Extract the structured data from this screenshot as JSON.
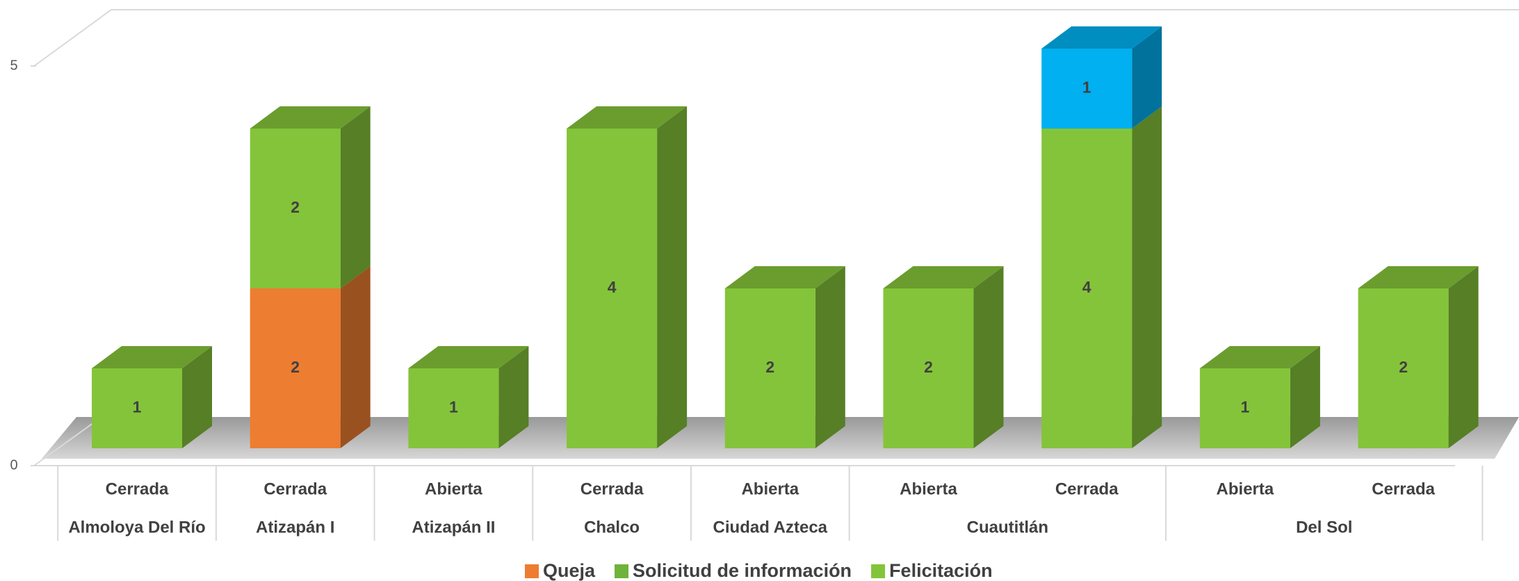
{
  "chart_data": {
    "type": "bar3d_stacked",
    "categories": [
      "Cerrada",
      "Cerrada",
      "Abierta",
      "Cerrada",
      "Abierta",
      "Abierta",
      "Cerrada",
      "Abierta",
      "Cerrada"
    ],
    "group_labels": [
      "Almoloya Del Río",
      "Atizapán I",
      "Atizapán II",
      "Chalco",
      "Ciudad Azteca",
      "Cuautitlán",
      null,
      "Del Sol",
      null
    ],
    "series": [
      {
        "name": "Queja",
        "color": "#ed7d31",
        "values": [
          null,
          2,
          null,
          null,
          null,
          null,
          null,
          null,
          null
        ]
      },
      {
        "name": "Solicitud de información",
        "color": "#6fb33a",
        "values": [
          null,
          null,
          null,
          null,
          null,
          null,
          null,
          null,
          null
        ]
      },
      {
        "name": "Felicitación",
        "color": "#84c43a",
        "values": [
          1,
          2,
          1,
          4,
          2,
          2,
          4,
          1,
          2
        ]
      },
      {
        "color": "#00b0f0",
        "values": [
          null,
          null,
          null,
          null,
          null,
          null,
          1,
          null,
          null
        ]
      }
    ],
    "ylim": [
      0,
      5
    ],
    "yticks": [
      0,
      5
    ],
    "legend": "bottom"
  }
}
